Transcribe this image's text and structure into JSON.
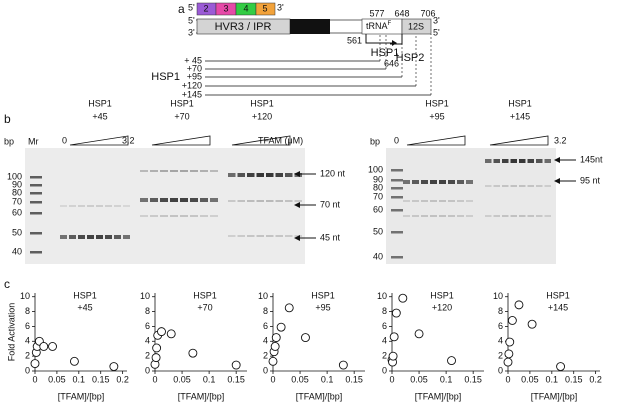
{
  "panel_labels": [
    "a",
    "b",
    "c"
  ],
  "diagram": {
    "blocks": [
      "2",
      "3",
      "4",
      "5"
    ],
    "ends": [
      "5'",
      "3'",
      "5'",
      "3'",
      "3'",
      "5'"
    ],
    "regions": [
      "HVR3 / IPR",
      "tRNA",
      "F",
      "12S"
    ],
    "positions": [
      "577",
      "648",
      "706",
      "561",
      "646"
    ],
    "promoters": [
      "HSP1",
      "HSP2"
    ],
    "templates_label": "HSP1",
    "templates": [
      "+ 45",
      "+70",
      "+95",
      "+120",
      "+145"
    ]
  },
  "gels": {
    "bp": [
      "bp",
      "bp"
    ],
    "marker": "Mr",
    "sizes": [
      "100",
      "90",
      "80",
      "70",
      "60",
      "50",
      "40"
    ],
    "tfam_label": "TFAM (μM)",
    "tfam_min": [
      "0",
      "0"
    ],
    "tfam_max": [
      "3.2",
      "3.2"
    ],
    "lanes": [
      {
        "title": "HSP1",
        "template": "+45"
      },
      {
        "title": "HSP1",
        "template": "+70"
      },
      {
        "title": "HSP1",
        "template": "+120"
      },
      {
        "title": "HSP1",
        "template": "+95"
      },
      {
        "title": "HSP1",
        "template": "+145"
      }
    ],
    "products": [
      "120 nt",
      "70 nt",
      "45 nt",
      "145nt",
      "95 nt"
    ]
  },
  "chart_data": [
    {
      "type": "scatter",
      "title": [
        "HSP1",
        "+45"
      ],
      "ylabel": "Fold Activation",
      "xlabel": "[TFAM]/[bp]",
      "x": [
        0,
        0.003,
        0.005,
        0.01,
        0.02,
        0.04,
        0.09,
        0.18
      ],
      "values": [
        1,
        2.5,
        3.3,
        4,
        3.3,
        3.3,
        1.3,
        0.6
      ],
      "xlim": [
        0,
        0.21
      ],
      "ylim": [
        0,
        10.5
      ],
      "xticks": [
        0,
        0.05,
        0.1,
        0.15,
        0.2
      ],
      "yticks": [
        0,
        2,
        4,
        6,
        8,
        10
      ]
    },
    {
      "type": "scatter",
      "title": [
        "HSP1",
        "+70"
      ],
      "xlabel": "[TFAM]/[bp]",
      "x": [
        0,
        0.002,
        0.003,
        0.005,
        0.012,
        0.03,
        0.07,
        0.15
      ],
      "values": [
        0.9,
        1.8,
        3.1,
        4.8,
        5.3,
        5,
        2.4,
        0.8
      ],
      "xlim": [
        0,
        0.17
      ],
      "ylim": [
        0,
        10.5
      ],
      "xticks": [
        0,
        0.05,
        0.1,
        0.15
      ],
      "yticks": [
        0,
        2,
        4,
        6,
        8,
        10
      ]
    },
    {
      "type": "scatter",
      "title": [
        "HSP1",
        "+95"
      ],
      "xlabel": "[TFAM]/[bp]",
      "x": [
        0,
        0.002,
        0.004,
        0.006,
        0.015,
        0.03,
        0.06,
        0.13
      ],
      "values": [
        1.3,
        2.6,
        3.3,
        4.5,
        5.9,
        8.5,
        4.5,
        0.8
      ],
      "xlim": [
        0,
        0.17
      ],
      "ylim": [
        0,
        10.5
      ],
      "xticks": [
        0,
        0.05,
        0.1,
        0.15
      ],
      "yticks": [
        0,
        2,
        4,
        6,
        8,
        10
      ]
    },
    {
      "type": "scatter",
      "title": [
        "HSP1",
        "+120"
      ],
      "xlabel": "[TFAM]/[bp]",
      "x": [
        0,
        0.001,
        0.002,
        0.004,
        0.008,
        0.02,
        0.05,
        0.11
      ],
      "values": [
        1.5,
        1.2,
        2,
        4.6,
        7.8,
        9.8,
        5,
        1.4
      ],
      "xlim": [
        0,
        0.17
      ],
      "ylim": [
        0,
        10.5
      ],
      "xticks": [
        0,
        0.05,
        0.1,
        0.15
      ],
      "yticks": [
        0,
        2,
        4,
        6,
        8,
        10
      ]
    },
    {
      "type": "scatter",
      "title": [
        "HSP1",
        "+145"
      ],
      "xlabel": "[TFAM]/[bp]",
      "x": [
        0,
        0.002,
        0.004,
        0.01,
        0.025,
        0.055,
        0.12
      ],
      "values": [
        1.2,
        2.3,
        3.9,
        6.8,
        8.9,
        6.3,
        0.6
      ],
      "xlim": [
        0,
        0.21
      ],
      "ylim": [
        0,
        10.5
      ],
      "xticks": [
        0,
        0.05,
        0.1,
        0.15,
        0.2
      ],
      "yticks": [
        0,
        2,
        4,
        6,
        8,
        10
      ]
    }
  ]
}
